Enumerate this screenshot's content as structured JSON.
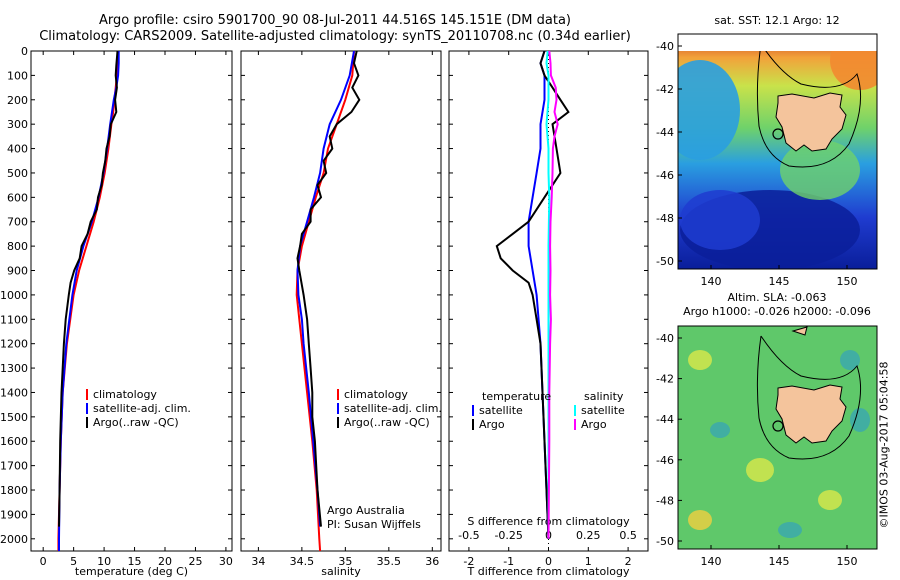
{
  "header": {
    "line1": "Argo profile: csiro 5901700_90 08-Jul-2011 44.516S 145.151E (DM data)",
    "line2": "Climatology: CARS2009. Satellite-adjusted climatology: synTS_20110708.nc (0.34d earlier)"
  },
  "colors": {
    "climatology": "#ff0000",
    "satellite": "#0000ff",
    "argo": "#000000",
    "sat_salinity": "#00ffff",
    "argo_salinity": "#ff00ff",
    "land": "#f4c49c"
  },
  "stamp": "©IMOS 03-Aug-2017 05:04:58",
  "chart_data": [
    {
      "type": "line",
      "xlabel": "temperature (deg C)",
      "xlim": [
        -2,
        31
      ],
      "ylim": [
        2050,
        0
      ],
      "xticks": [
        0,
        5,
        10,
        15,
        20,
        25,
        30
      ],
      "yticks": [
        0,
        100,
        200,
        300,
        400,
        500,
        600,
        700,
        800,
        900,
        1000,
        1100,
        1200,
        1300,
        1400,
        1500,
        1600,
        1700,
        1800,
        1900,
        2000
      ],
      "legend": [
        "climatology",
        "satellite-adj. clim.",
        "Argo(..raw -QC)"
      ],
      "series": [
        {
          "name": "climatology",
          "depth": [
            0,
            50,
            100,
            150,
            200,
            250,
            300,
            400,
            500,
            600,
            700,
            800,
            900,
            1000,
            1200,
            1400,
            1600,
            1800,
            2000,
            2050
          ],
          "values": [
            12.3,
            12.2,
            12.1,
            11.9,
            11.7,
            11.5,
            11.2,
            10.7,
            10.1,
            9.3,
            8.3,
            7.1,
            5.9,
            5.0,
            3.9,
            3.2,
            2.9,
            2.7,
            2.5,
            2.5
          ]
        },
        {
          "name": "satellite-adj. clim.",
          "depth": [
            0,
            50,
            100,
            150,
            200,
            250,
            300,
            400,
            500,
            600,
            700,
            800,
            900,
            1000,
            1200,
            1400,
            1600,
            1800,
            2000,
            2050
          ],
          "values": [
            12.4,
            12.4,
            12.3,
            12.0,
            11.6,
            11.3,
            11.0,
            10.5,
            9.9,
            9.1,
            8.0,
            6.6,
            5.5,
            4.8,
            3.8,
            3.2,
            2.9,
            2.7,
            2.6,
            2.6
          ]
        },
        {
          "name": "Argo(..raw -QC)",
          "depth": [
            0,
            30,
            60,
            100,
            150,
            200,
            250,
            300,
            350,
            400,
            450,
            500,
            550,
            600,
            650,
            700,
            750,
            800,
            850,
            900,
            950,
            1000,
            1100,
            1200,
            1400,
            1600,
            1800,
            1950
          ],
          "values": [
            12.2,
            12.1,
            12.0,
            11.9,
            12.1,
            11.8,
            12.0,
            11.1,
            10.9,
            10.4,
            10.2,
            9.8,
            9.6,
            9.0,
            8.8,
            7.8,
            7.3,
            6.3,
            6.0,
            5.1,
            4.5,
            4.2,
            3.7,
            3.4,
            3.0,
            2.8,
            2.7,
            2.6
          ]
        }
      ]
    },
    {
      "type": "line",
      "xlabel": "salinity",
      "xlim": [
        33.8,
        36.1
      ],
      "ylim": [
        2050,
        0
      ],
      "xticks": [
        34,
        34.5,
        35,
        35.5,
        36
      ],
      "legend": [
        "climatology",
        "satellite-adj. clim.",
        "Argo(..raw -QC)"
      ],
      "annotation": [
        "Argo Australia",
        "PI: Susan Wijffels"
      ],
      "series": [
        {
          "name": "climatology",
          "depth": [
            0,
            100,
            200,
            300,
            400,
            500,
            600,
            700,
            800,
            900,
            1000,
            1100,
            1200,
            1300,
            1400,
            1600,
            1800,
            2000,
            2050
          ],
          "values": [
            35.1,
            35.08,
            35.0,
            34.9,
            34.8,
            34.75,
            34.66,
            34.58,
            34.5,
            34.45,
            34.44,
            34.47,
            34.5,
            34.53,
            34.56,
            34.62,
            34.67,
            34.7,
            34.71
          ]
        },
        {
          "name": "satellite-adj. clim.",
          "depth": [
            0,
            100,
            200,
            300,
            400,
            500,
            600,
            700,
            800,
            900,
            1000,
            1100,
            1200,
            1300,
            1400,
            1600,
            1800,
            1950
          ],
          "values": [
            35.1,
            35.05,
            34.95,
            34.82,
            34.75,
            34.71,
            34.64,
            34.56,
            34.48,
            34.45,
            34.46,
            34.5,
            34.52,
            34.55,
            34.58,
            34.63,
            34.68,
            34.71
          ]
        },
        {
          "name": "Argo(..raw -QC)",
          "depth": [
            0,
            50,
            100,
            150,
            200,
            250,
            300,
            350,
            400,
            450,
            500,
            550,
            600,
            650,
            700,
            750,
            800,
            850,
            900,
            1000,
            1100,
            1200,
            1300,
            1400,
            1500,
            1600,
            1800,
            1950
          ],
          "values": [
            35.13,
            35.1,
            35.15,
            35.08,
            35.16,
            35.07,
            34.9,
            34.82,
            34.85,
            34.75,
            34.78,
            34.68,
            34.72,
            34.6,
            34.6,
            34.5,
            34.48,
            34.45,
            34.47,
            34.52,
            34.56,
            34.58,
            34.6,
            34.62,
            34.62,
            34.65,
            34.68,
            34.72
          ]
        }
      ]
    },
    {
      "type": "line",
      "xlabel": "T difference from climatology",
      "xlabel2": "S difference from climatology",
      "xlim": [
        -2.5,
        2.5
      ],
      "ylim": [
        2050,
        0
      ],
      "xticks": [
        -2,
        -1,
        0,
        1,
        2
      ],
      "xticks2": [
        "-0.5",
        "-0.25",
        "0",
        "0.25",
        "0.5"
      ],
      "legend": {
        "temperature": [
          "satellite",
          "Argo"
        ],
        "salinity": [
          "satellite",
          "Argo"
        ],
        "temperature_title": "temperature",
        "salinity_title": "salinity"
      },
      "series": [
        {
          "name": "temperature satellite",
          "depth": [
            0,
            50,
            100,
            200,
            300,
            400,
            500,
            600,
            700,
            800,
            900,
            1000,
            1200,
            1400,
            1600,
            1800,
            2000
          ],
          "values": [
            -0.1,
            -0.2,
            -0.1,
            -0.1,
            -0.2,
            -0.2,
            -0.3,
            -0.4,
            -0.5,
            -0.5,
            -0.4,
            -0.3,
            -0.2,
            -0.15,
            -0.1,
            -0.05,
            0
          ]
        },
        {
          "name": "temperature Argo",
          "depth": [
            0,
            50,
            100,
            150,
            200,
            250,
            300,
            400,
            500,
            600,
            700,
            750,
            800,
            850,
            900,
            950,
            1000,
            1100,
            1200,
            1400,
            1600,
            1800,
            2000
          ],
          "values": [
            -0.1,
            -0.2,
            -0.1,
            0.1,
            0.3,
            0.5,
            0.1,
            0.2,
            0.3,
            -0.1,
            -0.5,
            -0.9,
            -1.3,
            -1.2,
            -0.9,
            -0.5,
            -0.4,
            -0.3,
            -0.2,
            -0.15,
            -0.1,
            -0.05,
            0
          ]
        },
        {
          "name": "salinity satellite",
          "depth": [
            0,
            50,
            100,
            200,
            300,
            400,
            500,
            600,
            800,
            1000,
            1200,
            1400,
            1600,
            1800,
            2000
          ],
          "values": [
            -0.02,
            -0.05,
            0,
            0,
            -0.05,
            0,
            0,
            0.02,
            0,
            0,
            0,
            0,
            0,
            0,
            0
          ]
        },
        {
          "name": "salinity Argo",
          "depth": [
            0,
            50,
            100,
            150,
            200,
            250,
            300,
            350,
            400,
            500,
            600,
            700,
            800,
            900,
            1000,
            1100,
            1200,
            1300,
            1400,
            1600,
            1800,
            2000
          ],
          "values": [
            0.02,
            0.05,
            0.06,
            0.18,
            0.2,
            0.15,
            0.23,
            0.15,
            0.11,
            0.1,
            0.08,
            0.05,
            0.04,
            0.05,
            0.04,
            0.06,
            0.04,
            0.03,
            0.02,
            0.02,
            0.01,
            0
          ]
        }
      ]
    }
  ],
  "maps": {
    "top": {
      "title": "sat. SST: 12.1  Argo: 12",
      "yticks": [
        "-40",
        "-42",
        "-44",
        "-46",
        "-48",
        "-50"
      ],
      "xticks": [
        "140",
        "145",
        "150"
      ]
    },
    "bottom": {
      "title1": "Altim. SLA: -0.063",
      "title2": "Argo h1000: -0.026 h2000: -0.096",
      "yticks": [
        "-40",
        "-42",
        "-44",
        "-46",
        "-48",
        "-50"
      ],
      "xticks": [
        "140",
        "145",
        "150"
      ]
    }
  }
}
